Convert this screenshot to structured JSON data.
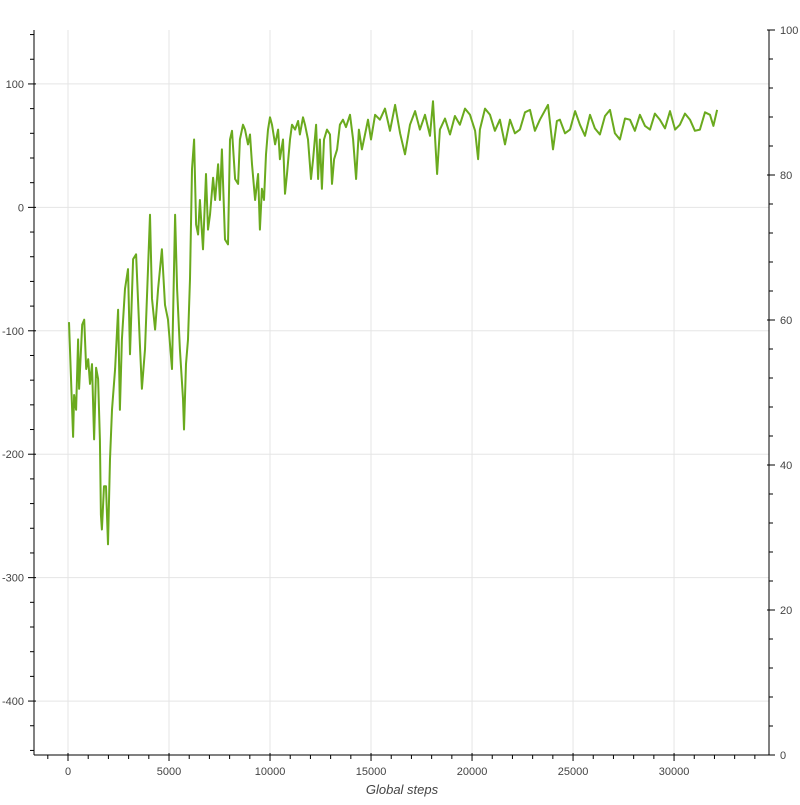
{
  "chart_data": {
    "type": "line",
    "title": "",
    "xlabel": "Global steps",
    "ylabel": "",
    "xlim": [
      -1634,
      34700
    ],
    "ylim": [
      -443.7,
      143.7
    ],
    "y2lim": [
      0,
      100
    ],
    "grid": true,
    "line_color": "#6aaa1e",
    "x_ticks": [
      0,
      5000,
      10000,
      15000,
      20000,
      25000,
      30000
    ],
    "y_ticks": [
      100,
      0,
      -100,
      -200,
      -300,
      -400
    ],
    "y2_ticks": [
      0,
      20,
      40,
      60,
      80,
      100
    ],
    "series": [
      {
        "x": [
          50,
          250,
          300,
          400,
          500,
          550,
          700,
          800,
          900,
          1000,
          1090,
          1190,
          1290,
          1390,
          1490,
          1580,
          1630,
          1680,
          1780,
          1880,
          1980,
          2080,
          2180,
          2330,
          2480,
          2570,
          2670,
          2820,
          2970,
          3070,
          3220,
          3370,
          3560,
          3660,
          3810,
          3960,
          4060,
          4160,
          4310,
          4460,
          4650,
          4800,
          4950,
          5150,
          5300,
          5400,
          5540,
          5690,
          5740,
          5840,
          5940,
          6040,
          6140,
          6240,
          6340,
          6440,
          6530,
          6680,
          6830,
          6930,
          7030,
          7180,
          7280,
          7430,
          7520,
          7620,
          7770,
          7920,
          8020,
          8120,
          8270,
          8420,
          8510,
          8660,
          8760,
          8910,
          9010,
          9110,
          9260,
          9410,
          9500,
          9600,
          9700,
          9800,
          9900,
          10000,
          10100,
          10250,
          10400,
          10490,
          10640,
          10740,
          10840,
          10990,
          11090,
          11240,
          11390,
          11480,
          11630,
          11730,
          11880,
          12030,
          12130,
          12280,
          12380,
          12470,
          12570,
          12670,
          12820,
          12970,
          13070,
          13170,
          13320,
          13460,
          13610,
          13760,
          13960,
          14110,
          14260,
          14400,
          14550,
          14700,
          14850,
          15000,
          15200,
          15440,
          15690,
          15940,
          16190,
          16440,
          16680,
          16930,
          17180,
          17420,
          17670,
          17920,
          18070,
          18270,
          18410,
          18660,
          18910,
          19150,
          19400,
          19650,
          19900,
          20150,
          20300,
          20390,
          20640,
          20890,
          21130,
          21380,
          21630,
          21880,
          22120,
          22370,
          22620,
          22870,
          23110,
          23360,
          23760,
          24010,
          24200,
          24350,
          24600,
          24850,
          25100,
          25340,
          25590,
          25840,
          26080,
          26330,
          26580,
          26830,
          27070,
          27320,
          27570,
          27820,
          28060,
          28310,
          28560,
          28810,
          29050,
          29300,
          29550,
          29800,
          30050,
          30290,
          30540,
          30790,
          31030,
          31280,
          31530,
          31780,
          31950,
          32130
        ],
        "y": [
          -93,
          -186,
          -152,
          -164,
          -107,
          -147,
          -95,
          -91,
          -131,
          -123,
          -143,
          -127,
          -188,
          -130,
          -139,
          -188,
          -249,
          -261,
          -226,
          -226,
          -273,
          -204,
          -164,
          -131,
          -83,
          -164,
          -107,
          -66,
          -50,
          -119,
          -42,
          -38,
          -111,
          -147,
          -115,
          -50,
          -6,
          -74,
          -99,
          -66,
          -34,
          -79,
          -91,
          -131,
          -6,
          -66,
          -115,
          -155,
          -180,
          -127,
          -107,
          -58,
          31,
          55,
          -14,
          -22,
          6,
          -34,
          27,
          -18,
          -6,
          24,
          6,
          35,
          6,
          47,
          -26,
          -30,
          55,
          62,
          23,
          19,
          55,
          67,
          63,
          51,
          59,
          35,
          6,
          27,
          -18,
          15,
          6,
          43,
          63,
          73,
          67,
          51,
          63,
          39,
          55,
          11,
          27,
          55,
          67,
          63,
          70,
          59,
          73,
          67,
          55,
          23,
          39,
          67,
          23,
          55,
          15,
          55,
          63,
          59,
          19,
          39,
          47,
          67,
          71,
          65,
          75,
          55,
          23,
          63,
          47,
          59,
          71,
          55,
          75,
          71,
          80,
          62,
          83,
          60,
          43,
          67,
          78,
          63,
          75,
          58,
          86,
          27,
          63,
          72,
          59,
          74,
          67,
          80,
          75,
          62,
          39,
          63,
          80,
          75,
          62,
          71,
          51,
          71,
          60,
          63,
          77,
          79,
          62,
          71,
          83,
          47,
          70,
          71,
          60,
          63,
          78,
          67,
          58,
          75,
          64,
          59,
          74,
          79,
          60,
          55,
          72,
          71,
          62,
          75,
          66,
          63,
          76,
          71,
          64,
          78,
          63,
          67,
          76,
          71,
          62,
          63,
          77,
          75,
          66,
          79
        ]
      }
    ]
  }
}
